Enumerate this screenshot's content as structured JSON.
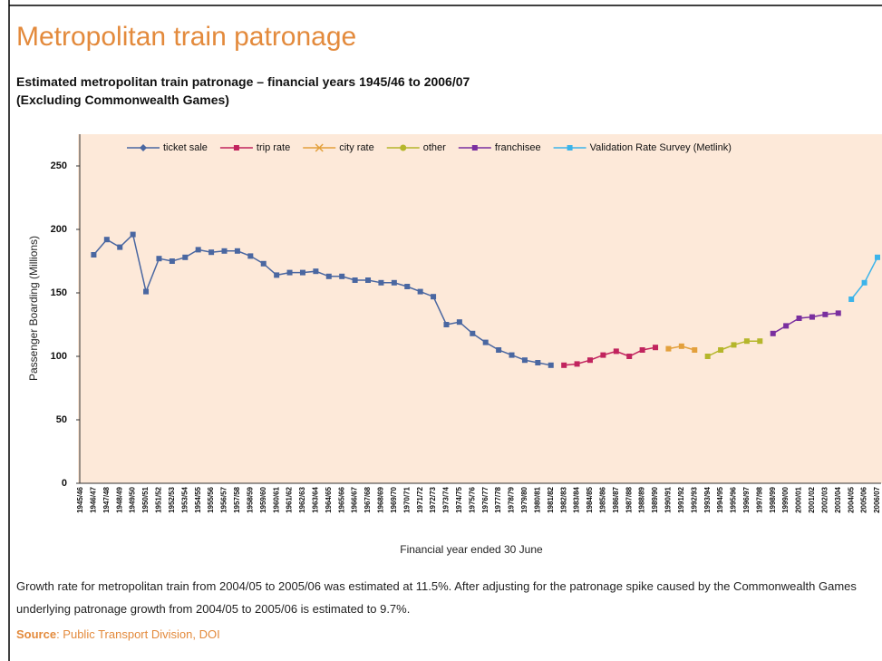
{
  "heading": "Metropolitan train patronage",
  "chart_data": {
    "type": "line",
    "title": "Estimated metropolitan train patronage – financial years 1945/46 to 2006/07",
    "subtitle": "(Excluding Commonwealth Games)",
    "x_label": "Financial year ended 30 June",
    "y_label": "Passenger Boarding (Millions)",
    "categories": [
      "1945/46",
      "1946/47",
      "1947/48",
      "1948/49",
      "1949/50",
      "1950/51",
      "1951/52",
      "1952/53",
      "1953/54",
      "1954/55",
      "1955/56",
      "1956/57",
      "1957/58",
      "1958/59",
      "1959/60",
      "1960/61",
      "1961/62",
      "1962/63",
      "1963/64",
      "1964/65",
      "1965/66",
      "1966/67",
      "1967/68",
      "1968/69",
      "1969/70",
      "1970/71",
      "1971/72",
      "1972/73",
      "1973/74",
      "1974/75",
      "1975/76",
      "1976/77",
      "1977/78",
      "1978/79",
      "1979/80",
      "1980/81",
      "1981/82",
      "1982/83",
      "1983/84",
      "1984/85",
      "1985/86",
      "1986/87",
      "1987/88",
      "1988/89",
      "1989/90",
      "1990/91",
      "1991/92",
      "1992/93",
      "1993/94",
      "1994/95",
      "1995/96",
      "1996/97",
      "1997/98",
      "1998/99",
      "1999/00",
      "2000/01",
      "2001/02",
      "2002/03",
      "2003/04",
      "2004/05",
      "2005/06",
      "2006/07"
    ],
    "ylim": [
      0,
      275
    ],
    "yticks": [
      0,
      50,
      100,
      150,
      200,
      250
    ],
    "background": "#fde9d9",
    "series": [
      {
        "name": "ticket sale",
        "color": "#4a67a1",
        "legend_marker": "diamond",
        "values": [
          null,
          180,
          192,
          186,
          196,
          151,
          177,
          175,
          178,
          184,
          182,
          183,
          183,
          179,
          173,
          164,
          166,
          166,
          167,
          163,
          163,
          160,
          160,
          158,
          158,
          155,
          151,
          147,
          125,
          127,
          118,
          111,
          105,
          101,
          97,
          95,
          93,
          null,
          null,
          null,
          null,
          null,
          null,
          null,
          null,
          null,
          null,
          null,
          null,
          null,
          null,
          null,
          null,
          null,
          null,
          null,
          null,
          null,
          null,
          null,
          null,
          null
        ]
      },
      {
        "name": "trip rate",
        "color": "#c1245e",
        "legend_marker": "square",
        "values": [
          null,
          null,
          null,
          null,
          null,
          null,
          null,
          null,
          null,
          null,
          null,
          null,
          null,
          null,
          null,
          null,
          null,
          null,
          null,
          null,
          null,
          null,
          null,
          null,
          null,
          null,
          null,
          null,
          null,
          null,
          null,
          null,
          null,
          null,
          null,
          null,
          null,
          93,
          94,
          97,
          101,
          104,
          100,
          105,
          107,
          null,
          null,
          null,
          null,
          null,
          null,
          null,
          null,
          null,
          null,
          null,
          null,
          null,
          null,
          null,
          null,
          null
        ]
      },
      {
        "name": "city rate",
        "color": "#e3a03c",
        "legend_marker": "x",
        "values": [
          null,
          null,
          null,
          null,
          null,
          null,
          null,
          null,
          null,
          null,
          null,
          null,
          null,
          null,
          null,
          null,
          null,
          null,
          null,
          null,
          null,
          null,
          null,
          null,
          null,
          null,
          null,
          null,
          null,
          null,
          null,
          null,
          null,
          null,
          null,
          null,
          null,
          null,
          null,
          null,
          null,
          null,
          null,
          null,
          null,
          106,
          108,
          105,
          null,
          null,
          null,
          null,
          null,
          null,
          null,
          null,
          null,
          null,
          null,
          null,
          null,
          null
        ]
      },
      {
        "name": "other",
        "color": "#b5b62b",
        "legend_marker": "circle",
        "values": [
          null,
          null,
          null,
          null,
          null,
          null,
          null,
          null,
          null,
          null,
          null,
          null,
          null,
          null,
          null,
          null,
          null,
          null,
          null,
          null,
          null,
          null,
          null,
          null,
          null,
          null,
          null,
          null,
          null,
          null,
          null,
          null,
          null,
          null,
          null,
          null,
          null,
          null,
          null,
          null,
          null,
          null,
          null,
          null,
          null,
          null,
          null,
          null,
          100,
          105,
          109,
          112,
          112,
          null,
          null,
          null,
          null,
          null,
          null,
          null,
          null,
          null
        ]
      },
      {
        "name": "franchisee",
        "color": "#7a2f9f",
        "legend_marker": "square",
        "values": [
          null,
          null,
          null,
          null,
          null,
          null,
          null,
          null,
          null,
          null,
          null,
          null,
          null,
          null,
          null,
          null,
          null,
          null,
          null,
          null,
          null,
          null,
          null,
          null,
          null,
          null,
          null,
          null,
          null,
          null,
          null,
          null,
          null,
          null,
          null,
          null,
          null,
          null,
          null,
          null,
          null,
          null,
          null,
          null,
          null,
          null,
          null,
          null,
          null,
          null,
          null,
          null,
          null,
          118,
          124,
          130,
          131,
          133,
          134,
          null,
          null,
          null
        ]
      },
      {
        "name": "Validation Rate Survey (Metlink)",
        "color": "#3cb4ea",
        "legend_marker": "square",
        "values": [
          null,
          null,
          null,
          null,
          null,
          null,
          null,
          null,
          null,
          null,
          null,
          null,
          null,
          null,
          null,
          null,
          null,
          null,
          null,
          null,
          null,
          null,
          null,
          null,
          null,
          null,
          null,
          null,
          null,
          null,
          null,
          null,
          null,
          null,
          null,
          null,
          null,
          null,
          null,
          null,
          null,
          null,
          null,
          null,
          null,
          null,
          null,
          null,
          null,
          null,
          null,
          null,
          null,
          null,
          null,
          null,
          null,
          null,
          null,
          145,
          158,
          178
        ]
      }
    ]
  },
  "note": "Growth rate for metropolitan train from 2004/05 to 2005/06 was estimated at 11.5%. After adjusting for the patronage spike caused by the Commonwealth Games underlying patronage growth from 2004/05 to 2005/06 is estimated to 9.7%.",
  "source": {
    "label": "Source",
    "text": ": Public Transport Division, DOI"
  }
}
